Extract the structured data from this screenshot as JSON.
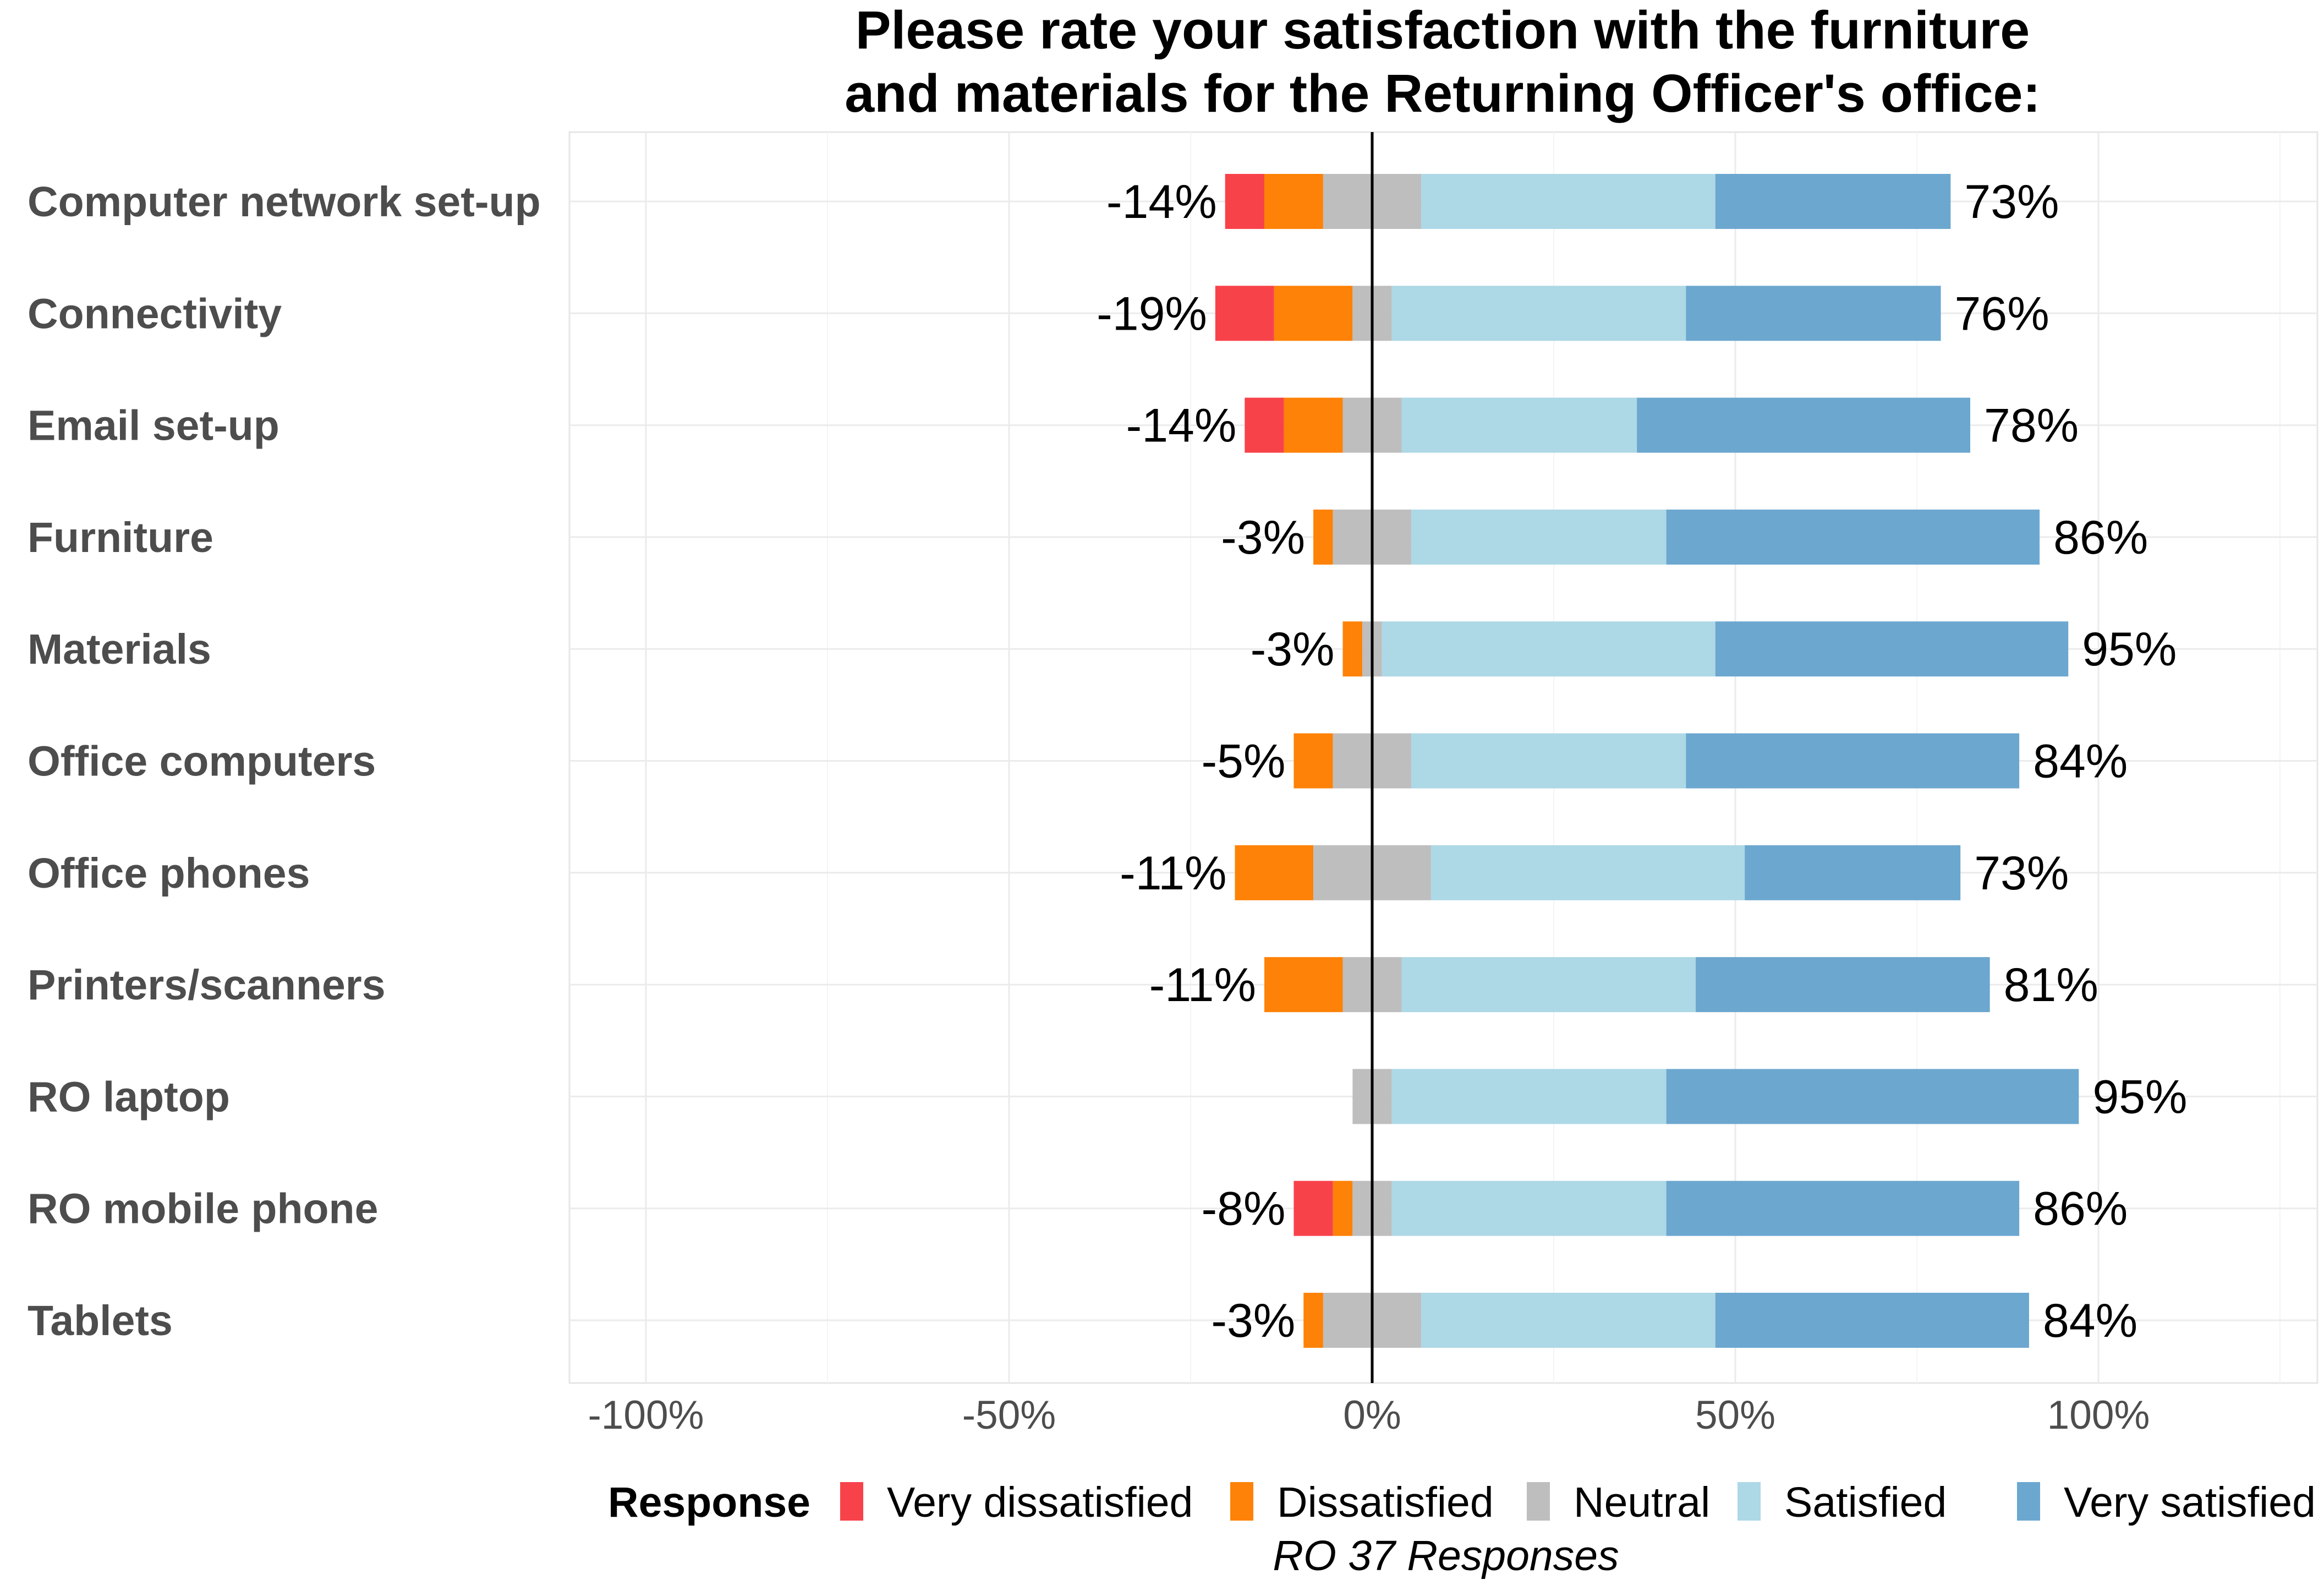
{
  "chart_data": {
    "type": "bar",
    "subtype": "diverging-stacked-horizontal",
    "title": [
      "Please rate your satisfaction with the furniture",
      "and materials for the Returning Officer's office:"
    ],
    "xlim": [
      -110,
      130
    ],
    "x_ticks": [
      -100,
      -50,
      0,
      50,
      100
    ],
    "x_tick_labels": [
      "-100%",
      "-50%",
      "0%",
      "50%",
      "100%"
    ],
    "grid": true,
    "legend": {
      "title": "Response",
      "position": "bottom",
      "entries": [
        {
          "name": "Very dissatisfied",
          "color": "#f8424a"
        },
        {
          "name": "Dissatisfied",
          "color": "#fe8207"
        },
        {
          "name": "Neutral",
          "color": "#bebebe"
        },
        {
          "name": "Satisfied",
          "color": "#add8e6"
        },
        {
          "name": "Very satisfied",
          "color": "#6ca7cf"
        }
      ]
    },
    "caption": "RO 37 Responses",
    "categories": [
      "Computer network set-up",
      "Connectivity",
      "Email set-up",
      "Furniture",
      "Materials",
      "Office computers",
      "Office phones",
      "Printers/scanners",
      "RO laptop",
      "RO mobile phone",
      "Tablets"
    ],
    "series": [
      {
        "name": "Very dissatisfied",
        "values": [
          5.4,
          8.1,
          5.4,
          0,
          0,
          0,
          0,
          0,
          0,
          5.4,
          0
        ]
      },
      {
        "name": "Dissatisfied",
        "values": [
          8.1,
          10.8,
          8.1,
          2.7,
          2.7,
          5.4,
          10.8,
          10.8,
          0,
          2.7,
          2.7
        ]
      },
      {
        "name": "Neutral",
        "values": [
          13.5,
          5.4,
          8.1,
          10.8,
          2.7,
          10.8,
          16.2,
          8.1,
          5.4,
          5.4,
          13.5
        ]
      },
      {
        "name": "Satisfied",
        "values": [
          40.5,
          40.5,
          32.4,
          35.1,
          45.9,
          37.8,
          43.2,
          40.5,
          37.8,
          37.8,
          40.5
        ]
      },
      {
        "name": "Very satisfied",
        "values": [
          32.4,
          35.1,
          45.9,
          51.4,
          48.6,
          45.9,
          29.7,
          40.5,
          56.8,
          48.6,
          43.2
        ]
      }
    ],
    "negative_labels": [
      "-14%",
      "-19%",
      "-14%",
      "-3%",
      "-3%",
      "-5%",
      "-11%",
      "-11%",
      "",
      "-8%",
      "-3%"
    ],
    "positive_labels": [
      "73%",
      "76%",
      "78%",
      "86%",
      "95%",
      "84%",
      "73%",
      "81%",
      "95%",
      "86%",
      "84%"
    ]
  }
}
